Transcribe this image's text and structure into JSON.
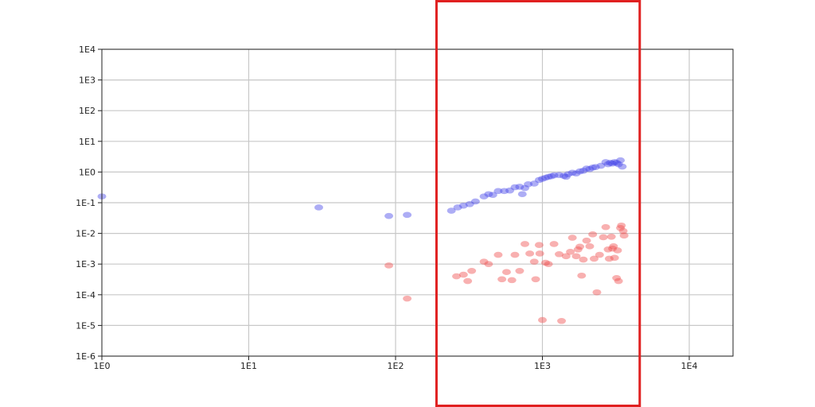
{
  "chart_data": {
    "type": "scatter",
    "x_scale": "log",
    "y_scale": "log",
    "xlim": [
      1,
      20000
    ],
    "ylim": [
      1e-06,
      10000
    ],
    "grid": true,
    "x_ticks": [
      {
        "value": 1,
        "label": "1E0"
      },
      {
        "value": 10,
        "label": "1E1"
      },
      {
        "value": 100,
        "label": "1E2"
      },
      {
        "value": 1000,
        "label": "1E3"
      },
      {
        "value": 10000,
        "label": "1E4"
      }
    ],
    "y_ticks": [
      {
        "value": 10000,
        "label": "1E4"
      },
      {
        "value": 1000,
        "label": "1E3"
      },
      {
        "value": 100,
        "label": "1E2"
      },
      {
        "value": 10,
        "label": "1E1"
      },
      {
        "value": 1,
        "label": "1E0"
      },
      {
        "value": 0.1,
        "label": "1E-1"
      },
      {
        "value": 0.01,
        "label": "1E-2"
      },
      {
        "value": 0.001,
        "label": "1E-3"
      },
      {
        "value": 0.0001,
        "label": "1E-4"
      },
      {
        "value": 1e-05,
        "label": "1E-5"
      },
      {
        "value": 1e-06,
        "label": "1E-6"
      }
    ],
    "series": [
      {
        "color": "#4a4ae8",
        "points": [
          [
            1,
            0.16
          ],
          [
            30,
            0.07
          ],
          [
            90,
            0.037
          ],
          [
            120,
            0.04
          ],
          [
            240,
            0.055
          ],
          [
            265,
            0.07
          ],
          [
            290,
            0.08
          ],
          [
            320,
            0.09
          ],
          [
            350,
            0.11
          ],
          [
            400,
            0.16
          ],
          [
            430,
            0.19
          ],
          [
            460,
            0.18
          ],
          [
            500,
            0.24
          ],
          [
            550,
            0.24
          ],
          [
            600,
            0.25
          ],
          [
            650,
            0.32
          ],
          [
            700,
            0.33
          ],
          [
            730,
            0.19
          ],
          [
            760,
            0.3
          ],
          [
            800,
            0.4
          ],
          [
            880,
            0.42
          ],
          [
            950,
            0.55
          ],
          [
            1000,
            0.6
          ],
          [
            1050,
            0.65
          ],
          [
            1100,
            0.7
          ],
          [
            1150,
            0.73
          ],
          [
            1200,
            0.78
          ],
          [
            1300,
            0.8
          ],
          [
            1400,
            0.75
          ],
          [
            1450,
            0.7
          ],
          [
            1500,
            0.85
          ],
          [
            1600,
            0.95
          ],
          [
            1700,
            0.9
          ],
          [
            1800,
            1.05
          ],
          [
            1900,
            1.1
          ],
          [
            2000,
            1.3
          ],
          [
            2100,
            1.25
          ],
          [
            2200,
            1.4
          ],
          [
            2300,
            1.45
          ],
          [
            2500,
            1.6
          ],
          [
            2700,
            2.1
          ],
          [
            2800,
            1.8
          ],
          [
            2900,
            2.0
          ],
          [
            3000,
            1.9
          ],
          [
            3100,
            2.1
          ],
          [
            3200,
            2.0
          ],
          [
            3300,
            1.8
          ],
          [
            3400,
            2.4
          ],
          [
            3500,
            1.5
          ]
        ]
      },
      {
        "color": "#f05050",
        "points": [
          [
            90,
            0.0009
          ],
          [
            120,
            7.5e-05
          ],
          [
            260,
            0.0004
          ],
          [
            290,
            0.00045
          ],
          [
            310,
            0.00028
          ],
          [
            330,
            0.0006
          ],
          [
            400,
            0.0012
          ],
          [
            430,
            0.001
          ],
          [
            500,
            0.002
          ],
          [
            530,
            0.00032
          ],
          [
            570,
            0.00055
          ],
          [
            620,
            0.0003
          ],
          [
            650,
            0.002
          ],
          [
            700,
            0.0006
          ],
          [
            760,
            0.0045
          ],
          [
            820,
            0.0022
          ],
          [
            880,
            0.0012
          ],
          [
            900,
            0.00032
          ],
          [
            950,
            0.0042
          ],
          [
            960,
            0.0022
          ],
          [
            1000,
            1.5e-05
          ],
          [
            1050,
            0.0011
          ],
          [
            1100,
            0.001
          ],
          [
            1200,
            0.0045
          ],
          [
            1300,
            0.0021
          ],
          [
            1350,
            1.4e-05
          ],
          [
            1450,
            0.0018
          ],
          [
            1550,
            0.0025
          ],
          [
            1600,
            0.0072
          ],
          [
            1700,
            0.0018
          ],
          [
            1750,
            0.003
          ],
          [
            1800,
            0.0037
          ],
          [
            1850,
            0.00042
          ],
          [
            1900,
            0.0014
          ],
          [
            2000,
            0.0058
          ],
          [
            2100,
            0.0038
          ],
          [
            2200,
            0.0093
          ],
          [
            2250,
            0.0015
          ],
          [
            2350,
            0.00012
          ],
          [
            2450,
            0.002
          ],
          [
            2600,
            0.0075
          ],
          [
            2700,
            0.016
          ],
          [
            2800,
            0.003
          ],
          [
            2850,
            0.0015
          ],
          [
            2950,
            0.0078
          ],
          [
            3000,
            0.0032
          ],
          [
            3050,
            0.0038
          ],
          [
            3100,
            0.0016
          ],
          [
            3200,
            0.00035
          ],
          [
            3250,
            0.0028
          ],
          [
            3300,
            0.00028
          ],
          [
            3400,
            0.015
          ],
          [
            3450,
            0.018
          ],
          [
            3550,
            0.012
          ],
          [
            3600,
            0.0085
          ]
        ]
      }
    ],
    "highlight": {
      "color": "#e02020",
      "x_range": [
        190,
        4600
      ]
    }
  }
}
